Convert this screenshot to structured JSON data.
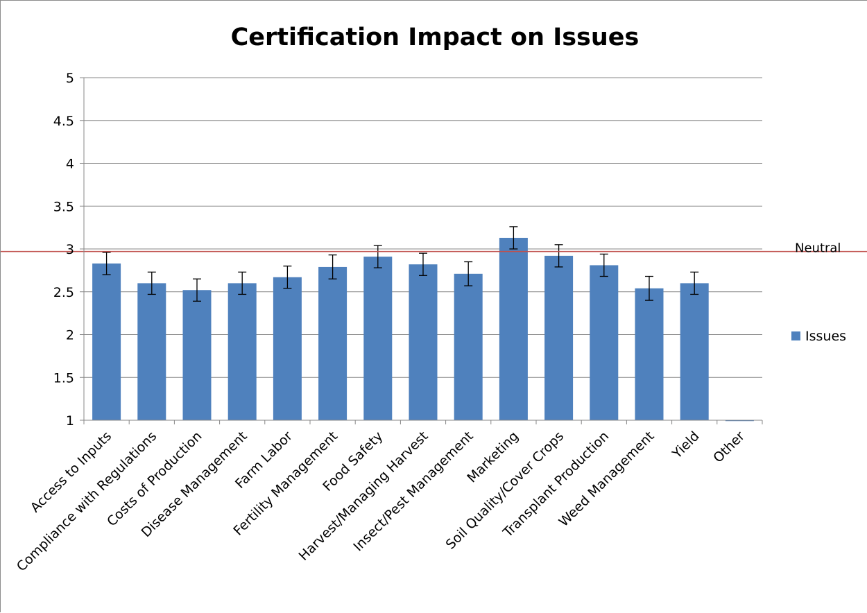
{
  "chart_data": {
    "type": "bar",
    "title": "Certification Impact on Issues",
    "xlabel": "",
    "ylabel": "",
    "ylim": [
      1,
      5
    ],
    "yticks": [
      "1",
      "1.5",
      "2",
      "2.5",
      "3",
      "3.5",
      "4",
      "4.5",
      "5"
    ],
    "grid": true,
    "legend_position": "right",
    "categories": [
      "Access to Inputs",
      "Compliance with Regulations",
      "Costs of Production",
      "Disease Management",
      "Farm Labor",
      "Fertility Management",
      "Food Safety",
      "Harvest/Managing Harvest",
      "Insect/Pest Management",
      "Marketing",
      "Soil Quality/Cover Crops",
      "Transplant Production",
      "Weed Management",
      "Yield",
      "Other"
    ],
    "series": [
      {
        "name": "Issues",
        "color": "#4f81bd",
        "values": [
          2.83,
          2.6,
          2.52,
          2.6,
          2.67,
          2.79,
          2.91,
          2.82,
          2.71,
          3.13,
          2.92,
          2.81,
          2.54,
          2.6,
          0.99
        ],
        "error": [
          0.13,
          0.13,
          0.13,
          0.13,
          0.13,
          0.14,
          0.13,
          0.13,
          0.14,
          0.13,
          0.13,
          0.13,
          0.14,
          0.13,
          0
        ]
      }
    ],
    "reference_line": {
      "label": "Neutral",
      "value": 2.97,
      "color": "#c0504d"
    }
  }
}
